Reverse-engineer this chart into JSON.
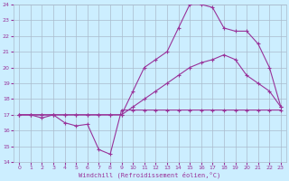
{
  "xlabel": "Windchill (Refroidissement éolien,°C)",
  "bg_color": "#cceeff",
  "grid_color": "#aabbcc",
  "line_color": "#993399",
  "xlim": [
    -0.5,
    23.5
  ],
  "ylim": [
    14,
    24
  ],
  "xticks": [
    0,
    1,
    2,
    3,
    4,
    5,
    6,
    7,
    8,
    9,
    10,
    11,
    12,
    13,
    14,
    15,
    16,
    17,
    18,
    19,
    20,
    21,
    22,
    23
  ],
  "yticks": [
    14,
    15,
    16,
    17,
    18,
    19,
    20,
    21,
    22,
    23,
    24
  ],
  "curve1_x": [
    0,
    1,
    2,
    3,
    4,
    5,
    6,
    7,
    8,
    9,
    10,
    11,
    12,
    13,
    14,
    15,
    16,
    17,
    18,
    19,
    20,
    21,
    22,
    23
  ],
  "curve1_y": [
    17.0,
    17.0,
    16.8,
    17.0,
    16.5,
    16.3,
    16.4,
    14.8,
    14.5,
    17.3,
    17.3,
    17.3,
    17.3,
    17.3,
    17.3,
    17.3,
    17.3,
    17.3,
    17.3,
    17.3,
    17.3,
    17.3,
    17.3,
    17.3
  ],
  "curve2_x": [
    0,
    1,
    2,
    3,
    4,
    5,
    6,
    7,
    8,
    9,
    10,
    11,
    12,
    13,
    14,
    15,
    16,
    17,
    18,
    19,
    20,
    21,
    22,
    23
  ],
  "curve2_y": [
    17.0,
    17.0,
    17.0,
    17.0,
    17.0,
    17.0,
    17.0,
    17.0,
    17.0,
    17.0,
    17.5,
    18.0,
    18.5,
    19.0,
    19.5,
    20.0,
    20.3,
    20.5,
    20.8,
    20.5,
    19.5,
    19.0,
    18.5,
    17.5
  ],
  "curve3_x": [
    0,
    1,
    2,
    3,
    4,
    5,
    6,
    7,
    8,
    9,
    10,
    11,
    12,
    13,
    14,
    15,
    16,
    17,
    18,
    19,
    20,
    21,
    22,
    23
  ],
  "curve3_y": [
    17.0,
    17.0,
    17.0,
    17.0,
    17.0,
    17.0,
    17.0,
    17.0,
    17.0,
    17.0,
    18.5,
    20.0,
    20.5,
    21.0,
    22.5,
    24.0,
    24.0,
    23.8,
    22.5,
    22.3,
    22.3,
    21.5,
    20.0,
    17.5
  ]
}
